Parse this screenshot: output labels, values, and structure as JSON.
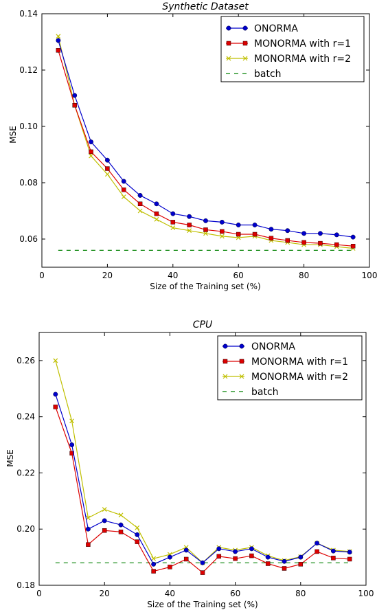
{
  "chart_data": [
    {
      "type": "line",
      "title": "Synthetic Dataset",
      "xlabel": "Size of the Training set (%)",
      "ylabel": "MSE",
      "xlim": [
        0,
        100
      ],
      "ylim": [
        0.05,
        0.14
      ],
      "xticks": [
        0,
        20,
        40,
        60,
        80,
        100
      ],
      "yticks": [
        0.06,
        0.08,
        0.1,
        0.12,
        0.14
      ],
      "ytick_labels": [
        "0.06",
        "0.08",
        "0.10",
        "0.12",
        "0.14"
      ],
      "xtick_labels": [
        "0",
        "20",
        "40",
        "60",
        "80",
        "100"
      ],
      "grid": false,
      "legend_position": "top-right",
      "x": [
        5,
        10,
        15,
        20,
        25,
        30,
        35,
        40,
        45,
        50,
        55,
        60,
        65,
        70,
        75,
        80,
        85,
        90,
        95
      ],
      "series": [
        {
          "name": "ONORMA",
          "color": "#0000cc",
          "marker": "circle",
          "values": [
            0.1305,
            0.111,
            0.0945,
            0.088,
            0.0805,
            0.0755,
            0.0725,
            0.069,
            0.068,
            0.0665,
            0.066,
            0.065,
            0.065,
            0.0635,
            0.063,
            0.062,
            0.062,
            0.0615,
            0.0607
          ]
        },
        {
          "name": "MONORMA with r=1",
          "color": "#dd0000",
          "marker": "square",
          "values": [
            0.127,
            0.1075,
            0.091,
            0.085,
            0.0775,
            0.0725,
            0.069,
            0.066,
            0.065,
            0.0633,
            0.0627,
            0.0617,
            0.0617,
            0.0603,
            0.0595,
            0.0588,
            0.0585,
            0.058,
            0.0575
          ]
        },
        {
          "name": "MONORMA with r=2",
          "color": "#bfbf00",
          "marker": "x",
          "values": [
            0.132,
            0.1075,
            0.0895,
            0.083,
            0.075,
            0.07,
            0.067,
            0.064,
            0.063,
            0.062,
            0.061,
            0.0605,
            0.061,
            0.0595,
            0.0588,
            0.058,
            0.058,
            0.0573,
            0.0567
          ]
        },
        {
          "name": "batch",
          "color": "#008000",
          "marker": "dashed",
          "values": [
            0.056,
            0.056,
            0.056,
            0.056,
            0.056,
            0.056,
            0.056,
            0.056,
            0.056,
            0.056,
            0.056,
            0.056,
            0.056,
            0.056,
            0.056,
            0.056,
            0.056,
            0.056,
            0.056
          ]
        }
      ]
    },
    {
      "type": "line",
      "title": "CPU",
      "xlabel": "Size of the Training set (%)",
      "ylabel": "MSE",
      "xlim": [
        0,
        100
      ],
      "ylim": [
        0.18,
        0.27
      ],
      "xticks": [
        0,
        20,
        40,
        60,
        80,
        100
      ],
      "yticks": [
        0.18,
        0.2,
        0.22,
        0.24,
        0.26
      ],
      "ytick_labels": [
        "0.18",
        "0.20",
        "0.22",
        "0.24",
        "0.26"
      ],
      "xtick_labels": [
        "0",
        "20",
        "40",
        "60",
        "80",
        "100"
      ],
      "grid": false,
      "legend_position": "top-right",
      "x": [
        5,
        10,
        15,
        20,
        25,
        30,
        35,
        40,
        45,
        50,
        55,
        60,
        65,
        70,
        75,
        80,
        85,
        90,
        95
      ],
      "series": [
        {
          "name": "ONORMA",
          "color": "#0000cc",
          "marker": "circle",
          "values": [
            0.248,
            0.23,
            0.2,
            0.203,
            0.2015,
            0.198,
            0.1875,
            0.19,
            0.1925,
            0.188,
            0.193,
            0.192,
            0.193,
            0.19,
            0.1885,
            0.19,
            0.195,
            0.1922,
            0.1918
          ]
        },
        {
          "name": "MONORMA with r=1",
          "color": "#dd0000",
          "marker": "square",
          "values": [
            0.2435,
            0.227,
            0.1945,
            0.1995,
            0.199,
            0.1955,
            0.185,
            0.1865,
            0.1893,
            0.1845,
            0.1903,
            0.1895,
            0.1905,
            0.1877,
            0.186,
            0.1875,
            0.192,
            0.1897,
            0.1893
          ]
        },
        {
          "name": "MONORMA with r=2",
          "color": "#bfbf00",
          "marker": "x",
          "values": [
            0.26,
            0.2385,
            0.204,
            0.207,
            0.205,
            0.2005,
            0.1895,
            0.191,
            0.1935,
            0.188,
            0.1935,
            0.1925,
            0.1935,
            0.1905,
            0.1888,
            0.1902,
            0.195,
            0.1925,
            0.192
          ]
        },
        {
          "name": "batch",
          "color": "#008000",
          "marker": "dashed",
          "values": [
            0.188,
            0.188,
            0.188,
            0.188,
            0.188,
            0.188,
            0.188,
            0.188,
            0.188,
            0.188,
            0.188,
            0.188,
            0.188,
            0.188,
            0.188,
            0.188,
            0.188,
            0.188,
            0.188
          ]
        }
      ]
    }
  ]
}
